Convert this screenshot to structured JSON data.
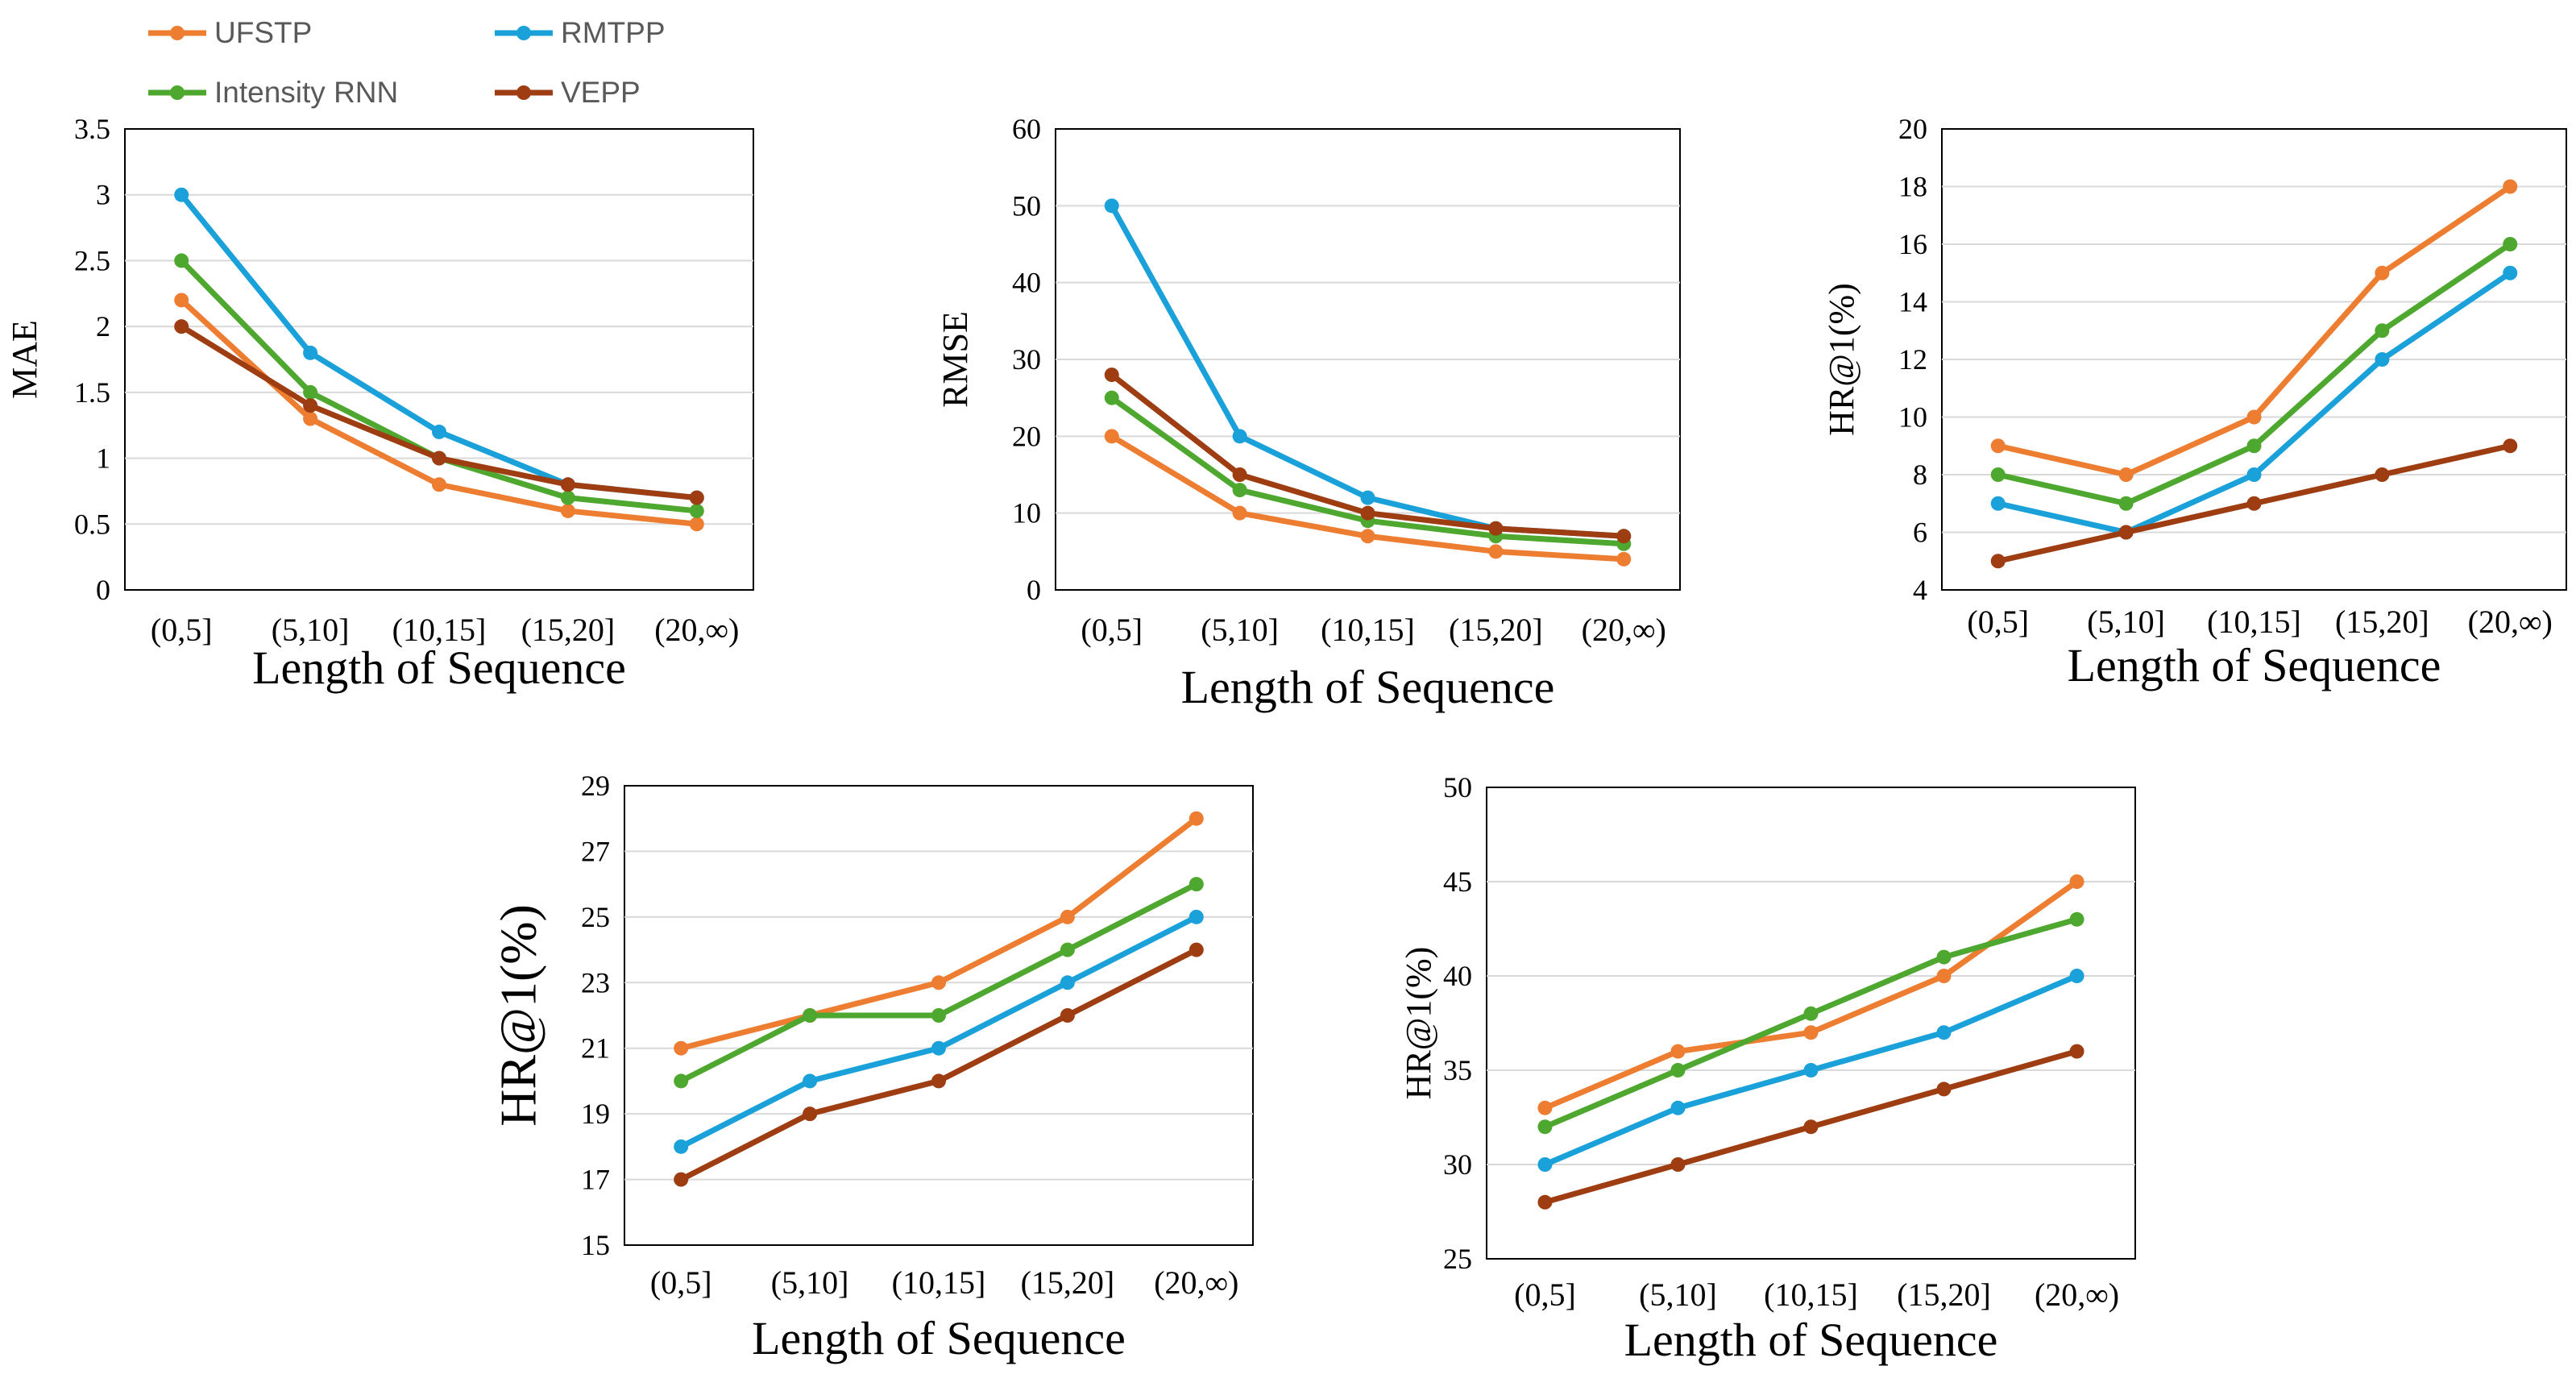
{
  "legend": {
    "entries": [
      {
        "name": "UFSTP",
        "color": "#ED7D31"
      },
      {
        "name": "RMTPP",
        "color": "#1BA1D9"
      },
      {
        "name": "Intensity RNN",
        "color": "#4EA72E"
      },
      {
        "name": "VEPP",
        "color": "#9E3D11"
      }
    ]
  },
  "chart_data": [
    {
      "type": "line",
      "title": "",
      "xlabel": "Length of Sequence",
      "ylabel": "MAE",
      "categories": [
        "(0,5]",
        "(5,10]",
        "(10,15]",
        "(15,20]",
        "(20,∞)"
      ],
      "ylim": [
        0,
        3.5
      ],
      "yticks": [
        "0",
        "0.5",
        "1",
        "1.5",
        "2",
        "2.5",
        "3",
        "3.5"
      ],
      "grid": true,
      "series": [
        {
          "name": "UFSTP",
          "color": "#ED7D31",
          "values": [
            2.2,
            1.3,
            0.8,
            0.6,
            0.5
          ]
        },
        {
          "name": "RMTPP",
          "color": "#1BA1D9",
          "values": [
            3.0,
            1.8,
            1.2,
            0.8,
            0.7
          ]
        },
        {
          "name": "Intensity RNN",
          "color": "#4EA72E",
          "values": [
            2.5,
            1.5,
            1.0,
            0.7,
            0.6
          ]
        },
        {
          "name": "VEPP",
          "color": "#9E3D11",
          "values": [
            2.0,
            1.4,
            1.0,
            0.8,
            0.7
          ]
        }
      ]
    },
    {
      "type": "line",
      "title": "",
      "xlabel": "Length of Sequence",
      "ylabel": "RMSE",
      "categories": [
        "(0,5]",
        "(5,10]",
        "(10,15]",
        "(15,20]",
        "(20,∞)"
      ],
      "ylim": [
        0,
        60
      ],
      "yticks": [
        "0",
        "10",
        "20",
        "30",
        "40",
        "50",
        "60"
      ],
      "grid": true,
      "series": [
        {
          "name": "UFSTP",
          "color": "#ED7D31",
          "values": [
            20,
            10,
            7,
            5,
            4
          ]
        },
        {
          "name": "RMTPP",
          "color": "#1BA1D9",
          "values": [
            50,
            20,
            12,
            8,
            7
          ]
        },
        {
          "name": "Intensity RNN",
          "color": "#4EA72E",
          "values": [
            25,
            13,
            9,
            7,
            6
          ]
        },
        {
          "name": "VEPP",
          "color": "#9E3D11",
          "values": [
            28,
            15,
            10,
            8,
            7
          ]
        }
      ]
    },
    {
      "type": "line",
      "title": "",
      "xlabel": "Length of Sequence",
      "ylabel": "HR@1(%)",
      "categories": [
        "(0,5]",
        "(5,10]",
        "(10,15]",
        "(15,20]",
        "(20,∞)"
      ],
      "ylim": [
        4,
        20
      ],
      "yticks": [
        "4",
        "6",
        "8",
        "10",
        "12",
        "14",
        "16",
        "18",
        "20"
      ],
      "grid": true,
      "series": [
        {
          "name": "UFSTP",
          "color": "#ED7D31",
          "values": [
            9,
            8,
            10,
            15,
            18
          ]
        },
        {
          "name": "RMTPP",
          "color": "#1BA1D9",
          "values": [
            7,
            6,
            8,
            12,
            15
          ]
        },
        {
          "name": "Intensity RNN",
          "color": "#4EA72E",
          "values": [
            8,
            7,
            9,
            13,
            16
          ]
        },
        {
          "name": "VEPP",
          "color": "#9E3D11",
          "values": [
            5,
            6,
            7,
            8,
            9
          ]
        }
      ]
    },
    {
      "type": "line",
      "title": "",
      "xlabel": "Length of Sequence",
      "ylabel": "HR@1(%)",
      "categories": [
        "(0,5]",
        "(5,10]",
        "(10,15]",
        "(15,20]",
        "(20,∞)"
      ],
      "ylim": [
        15,
        29
      ],
      "yticks": [
        "15",
        "17",
        "19",
        "21",
        "23",
        "25",
        "27",
        "29"
      ],
      "grid": true,
      "series": [
        {
          "name": "UFSTP",
          "color": "#ED7D31",
          "values": [
            21,
            22,
            23,
            25,
            28
          ]
        },
        {
          "name": "RMTPP",
          "color": "#1BA1D9",
          "values": [
            18,
            20,
            21,
            23,
            25
          ]
        },
        {
          "name": "Intensity RNN",
          "color": "#4EA72E",
          "values": [
            20,
            22,
            22,
            24,
            26
          ]
        },
        {
          "name": "VEPP",
          "color": "#9E3D11",
          "values": [
            17,
            19,
            20,
            22,
            24
          ]
        }
      ]
    },
    {
      "type": "line",
      "title": "",
      "xlabel": "Length of Sequence",
      "ylabel": "HR@1(%)",
      "categories": [
        "(0,5]",
        "(5,10]",
        "(10,15]",
        "(15,20]",
        "(20,∞)"
      ],
      "ylim": [
        25,
        50
      ],
      "yticks": [
        "25",
        "30",
        "35",
        "40",
        "45",
        "50"
      ],
      "grid": true,
      "series": [
        {
          "name": "UFSTP",
          "color": "#ED7D31",
          "values": [
            33,
            36,
            37,
            40,
            45
          ]
        },
        {
          "name": "RMTPP",
          "color": "#1BA1D9",
          "values": [
            30,
            33,
            35,
            37,
            40
          ]
        },
        {
          "name": "Intensity RNN",
          "color": "#4EA72E",
          "values": [
            32,
            35,
            38,
            41,
            43
          ]
        },
        {
          "name": "VEPP",
          "color": "#9E3D11",
          "values": [
            28,
            30,
            32,
            34,
            36
          ]
        }
      ]
    }
  ]
}
